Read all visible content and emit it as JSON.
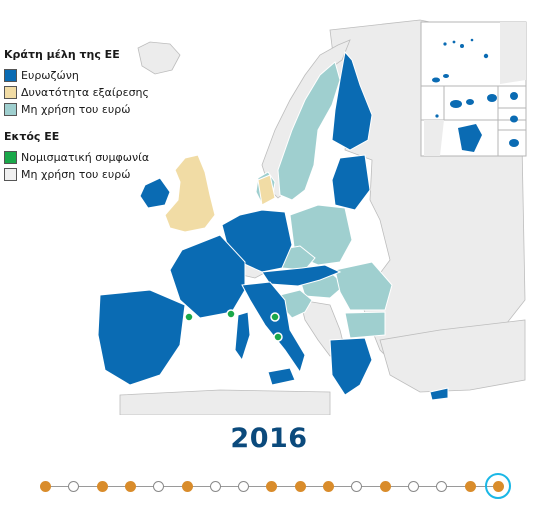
{
  "legend": {
    "eu_heading": "Κράτη μέλη της ΕΕ",
    "items_eu": [
      {
        "label": "Ευρωζώνη",
        "color": "#0a6bb3"
      },
      {
        "label": "Δυνατότητα εξαίρεσης",
        "color": "#f1dca5"
      },
      {
        "label": "Μη χρήση του ευρώ",
        "color": "#9fcfcf"
      }
    ],
    "noneu_heading": "Εκτός ΕΕ",
    "items_noneu": [
      {
        "label": "Νομισματική συμφωνία",
        "color": "#1aa84a"
      },
      {
        "label": "Μη χρήση του ευρώ",
        "color": "#f0f0f0"
      }
    ]
  },
  "year": "2016",
  "timeline": {
    "dots": [
      {
        "state": "filled"
      },
      {
        "state": "empty"
      },
      {
        "state": "filled"
      },
      {
        "state": "filled"
      },
      {
        "state": "empty"
      },
      {
        "state": "filled"
      },
      {
        "state": "empty"
      },
      {
        "state": "empty"
      },
      {
        "state": "filled"
      },
      {
        "state": "filled"
      },
      {
        "state": "filled"
      },
      {
        "state": "empty"
      },
      {
        "state": "filled"
      },
      {
        "state": "empty"
      },
      {
        "state": "empty"
      },
      {
        "state": "filled"
      },
      {
        "state": "filled"
      }
    ],
    "active_index": 16
  },
  "map": {
    "colors": {
      "eurozone": "#0a6bb3",
      "opt_out": "#f1dca5",
      "non_euro_eu": "#9fcfcf",
      "non_eu": "#ececec",
      "monetary_agreement": "#1aa84a",
      "sea": "#ffffff"
    },
    "microstates_with_agreement": [
      "Andorra",
      "Monaco",
      "San Marino",
      "Vatican City"
    ]
  }
}
